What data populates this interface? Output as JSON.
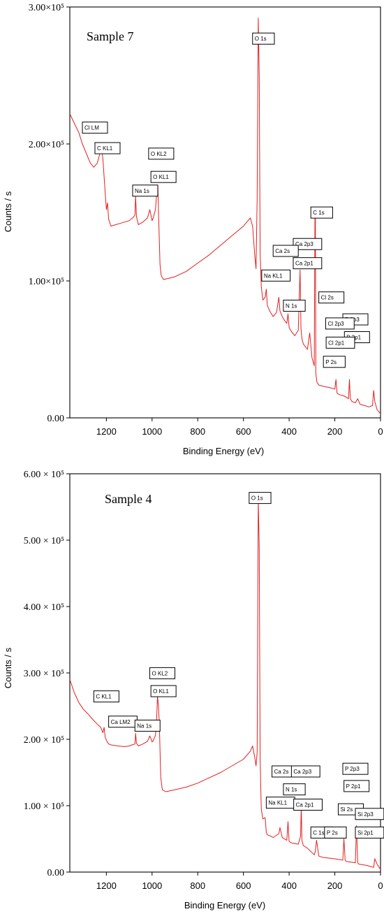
{
  "chart_data": [
    {
      "type": "line",
      "sample_label": "Sample 7",
      "xlabel": "Binding Energy (eV)",
      "ylabel": "Counts / s",
      "xlim": [
        1360,
        0
      ],
      "ylim": [
        0,
        300000
      ],
      "x_reversed": true,
      "x_ticks": [
        1200,
        1000,
        800,
        600,
        400,
        200,
        0
      ],
      "x_tick_labels": [
        "1200",
        "1000",
        "800",
        "600",
        "400",
        "200",
        "0"
      ],
      "y_ticks": [
        0,
        100000,
        200000,
        300000
      ],
      "y_tick_labels": [
        "0.00",
        "1.00×10⁵",
        "2.00×10⁵",
        "3.00×10⁵"
      ],
      "line_color": "#e0201f",
      "grid": false,
      "series": [
        {
          "x": [
            1360,
            1340,
            1320,
            1305,
            1290,
            1270,
            1255,
            1240,
            1230,
            1222,
            1215,
            1205,
            1200,
            1195,
            1190,
            1180,
            1160,
            1140,
            1120,
            1100,
            1085,
            1075,
            1072,
            1068,
            1060,
            1040,
            1020,
            1010,
            1005,
            1000,
            995,
            985,
            978,
            975,
            970,
            965,
            960,
            950,
            900,
            850,
            800,
            750,
            700,
            650,
            600,
            580,
            570,
            560,
            550,
            545,
            540,
            535,
            531,
            527,
            522,
            515,
            505,
            500,
            495,
            485,
            470,
            455,
            445,
            440,
            430,
            420,
            410,
            405,
            400,
            390,
            375,
            360,
            352,
            348,
            344,
            338,
            320,
            310,
            300,
            290,
            287,
            285,
            283,
            278,
            270,
            250,
            220,
            200,
            195,
            190,
            180,
            160,
            150,
            140,
            136,
            132,
            125,
            110,
            100,
            90,
            70,
            50,
            35,
            30,
            25,
            15,
            0
          ],
          "y": [
            222000,
            215000,
            208000,
            200000,
            194000,
            186000,
            183000,
            186000,
            192000,
            198000,
            189000,
            164000,
            152000,
            157000,
            145000,
            140000,
            141000,
            142000,
            143000,
            144000,
            146000,
            148000,
            162000,
            147000,
            141000,
            143000,
            146000,
            152000,
            148000,
            144000,
            146000,
            152000,
            168000,
            170000,
            140000,
            112000,
            104000,
            101000,
            103000,
            107000,
            113000,
            119000,
            126000,
            133000,
            140000,
            144000,
            146000,
            140000,
            118000,
            109000,
            160000,
            292000,
            250000,
            120000,
            96000,
            86000,
            88000,
            94000,
            82000,
            78000,
            74000,
            77000,
            88000,
            78000,
            74000,
            71000,
            69000,
            76000,
            66000,
            63000,
            60000,
            64000,
            108000,
            65000,
            58000,
            54000,
            50000,
            62000,
            44000,
            38000,
            147000,
            146000,
            32000,
            26000,
            24000,
            23000,
            22000,
            21000,
            28000,
            18000,
            17000,
            16000,
            15000,
            14000,
            28000,
            14000,
            12000,
            11000,
            14000,
            10000,
            9000,
            8000,
            9000,
            20000,
            12000,
            6000,
            3000
          ]
        }
      ],
      "annotations": [
        {
          "label": "O 1s",
          "x": 560,
          "y": 281000
        },
        {
          "label": "Cl LM",
          "x": 1305,
          "y": 216000
        },
        {
          "label": "C KL1",
          "x": 1250,
          "y": 201000
        },
        {
          "label": "O KL2",
          "x": 1015,
          "y": 197000
        },
        {
          "label": "O KL1",
          "x": 1005,
          "y": 180000
        },
        {
          "label": "Na 1s",
          "x": 1085,
          "y": 170000
        },
        {
          "label": "C 1s",
          "x": 305,
          "y": 154000
        },
        {
          "label": "Ca 2p3",
          "x": 382,
          "y": 131000
        },
        {
          "label": "Ca 2s",
          "x": 470,
          "y": 126000
        },
        {
          "label": "Ca 2p1",
          "x": 382,
          "y": 117000
        },
        {
          "label": "Na KL1",
          "x": 520,
          "y": 108000
        },
        {
          "label": "Cl 2s",
          "x": 270,
          "y": 92000
        },
        {
          "label": "N 1s",
          "x": 425,
          "y": 86000
        },
        {
          "label": "P 2p3",
          "x": 165,
          "y": 76000
        },
        {
          "label": "Cl 2p3",
          "x": 240,
          "y": 73000
        },
        {
          "label": "P 2p1",
          "x": 158,
          "y": 63000
        },
        {
          "label": "Cl 2p1",
          "x": 238,
          "y": 59000
        },
        {
          "label": "P 2s",
          "x": 250,
          "y": 45000
        }
      ]
    },
    {
      "type": "line",
      "sample_label": "Sample 4",
      "xlabel": "Binding Energy (eV)",
      "ylabel": "Counts / s",
      "xlim": [
        1360,
        0
      ],
      "ylim": [
        0,
        600000
      ],
      "x_reversed": true,
      "x_ticks": [
        1200,
        1000,
        800,
        600,
        400,
        200,
        0
      ],
      "x_tick_labels": [
        "1200",
        "1000",
        "800",
        "600",
        "400",
        "200",
        "0"
      ],
      "y_ticks": [
        0,
        100000,
        200000,
        300000,
        400000,
        500000,
        600000
      ],
      "y_tick_labels": [
        "0.00",
        "1.00 × 10⁵",
        "2.00 × 10⁵",
        "3.00 × 10⁵",
        "4.00 × 10⁵",
        "5.00 × 10⁵",
        "6.00 × 10⁵"
      ],
      "line_color": "#e0201f",
      "grid": false,
      "series": [
        {
          "x": [
            1360,
            1340,
            1320,
            1300,
            1280,
            1260,
            1240,
            1225,
            1215,
            1210,
            1205,
            1195,
            1185,
            1170,
            1150,
            1120,
            1100,
            1085,
            1075,
            1072,
            1068,
            1060,
            1040,
            1020,
            1010,
            1005,
            1000,
            995,
            985,
            980,
            976,
            972,
            968,
            962,
            955,
            940,
            900,
            850,
            800,
            750,
            700,
            650,
            600,
            580,
            570,
            560,
            550,
            545,
            540,
            535,
            531,
            527,
            522,
            515,
            505,
            500,
            495,
            485,
            470,
            445,
            440,
            430,
            410,
            405,
            400,
            390,
            360,
            350,
            347,
            344,
            338,
            320,
            290,
            285,
            280,
            270,
            250,
            200,
            165,
            160,
            155,
            150,
            110,
            105,
            100,
            95,
            60,
            40,
            30,
            25,
            15,
            0
          ],
          "y": [
            290000,
            270000,
            255000,
            245000,
            238000,
            230000,
            223000,
            218000,
            210000,
            218000,
            203000,
            195000,
            192000,
            191000,
            190000,
            189000,
            190000,
            192000,
            193000,
            209000,
            194000,
            190000,
            193000,
            197000,
            205000,
            201000,
            196000,
            198000,
            206000,
            230000,
            265000,
            250000,
            220000,
            143000,
            124000,
            121000,
            124000,
            128000,
            134000,
            142000,
            150000,
            160000,
            170000,
            178000,
            182000,
            190000,
            172000,
            160000,
            180000,
            560000,
            490000,
            170000,
            95000,
            80000,
            82000,
            60000,
            56000,
            55000,
            52000,
            58000,
            67000,
            52000,
            48000,
            76000,
            46000,
            44000,
            42000,
            54000,
            100000,
            48000,
            40000,
            36000,
            26000,
            32000,
            48000,
            24000,
            22000,
            20000,
            18000,
            50000,
            18000,
            16000,
            14000,
            70000,
            14000,
            12000,
            10000,
            8000,
            7000,
            20000,
            12000,
            4000
          ]
        }
      ],
      "annotations": [
        {
          "label": "O 1s",
          "x": 575,
          "y": 572000
        },
        {
          "label": "O KL2",
          "x": 1010,
          "y": 308000
        },
        {
          "label": "O KL1",
          "x": 1005,
          "y": 281000
        },
        {
          "label": "C KL1",
          "x": 1255,
          "y": 273000
        },
        {
          "label": "Ca LM2",
          "x": 1190,
          "y": 235000
        },
        {
          "label": "Na 1s",
          "x": 1075,
          "y": 229000
        },
        {
          "label": "P 2p3",
          "x": 165,
          "y": 164000
        },
        {
          "label": "Ca 2s",
          "x": 475,
          "y": 160000
        },
        {
          "label": "Ca 2p3",
          "x": 390,
          "y": 160000
        },
        {
          "label": "N 1s",
          "x": 425,
          "y": 133000
        },
        {
          "label": "P 2p1",
          "x": 160,
          "y": 138000
        },
        {
          "label": "Na KL1",
          "x": 500,
          "y": 113000
        },
        {
          "label": "Ca 2p1",
          "x": 380,
          "y": 110000
        },
        {
          "label": "Si 2s",
          "x": 185,
          "y": 103000
        },
        {
          "label": "Si 2p3",
          "x": 110,
          "y": 96000
        },
        {
          "label": "C 1s",
          "x": 305,
          "y": 68000
        },
        {
          "label": "P 2s",
          "x": 245,
          "y": 68000
        },
        {
          "label": "Si 2p1",
          "x": 110,
          "y": 68000
        }
      ]
    }
  ]
}
